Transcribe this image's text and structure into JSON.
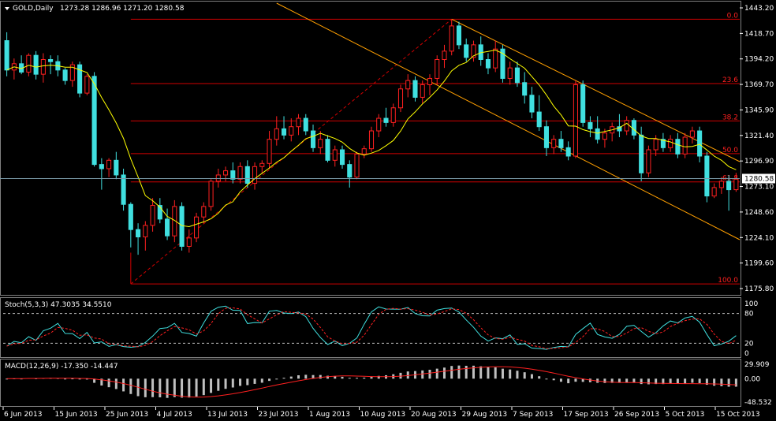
{
  "main_panel": {
    "title": "GOLD,Daily",
    "ohlc": "1273.28 1286.96 1271.20 1280.58",
    "price_ticks": [
      "1443.20",
      "1418.70",
      "1394.20",
      "1369.70",
      "1345.90",
      "1321.40",
      "1296.90",
      "1273.10",
      "1248.60",
      "1224.10",
      "1199.60",
      "1175.80"
    ],
    "current_price": "1280.58",
    "fib_levels": [
      {
        "label": "0.0",
        "price": 1432.4
      },
      {
        "label": "23.6",
        "price": 1371.1
      },
      {
        "label": "38.2",
        "price": 1335.5
      },
      {
        "label": "50.0",
        "price": 1304.3
      },
      {
        "label": "61.8",
        "price": 1277.4
      },
      {
        "label": "100.0",
        "price": 1180.2
      }
    ]
  },
  "stoch_panel": {
    "title": "Stoch(5,3,3) 47.3035 34.5510",
    "ticks": [
      "100",
      "80",
      "20",
      "0"
    ]
  },
  "macd_panel": {
    "title": "MACD(12,26,9) -17.350 -14.447",
    "ticks": [
      "29.909",
      "0.00",
      "-48.532"
    ]
  },
  "x_axis": {
    "dates": [
      "6 Jun 2013",
      "15 Jun 2013",
      "25 Jun 2013",
      "4 Jul 2013",
      "13 Jul 2013",
      "23 Jul 2013",
      "1 Aug 2013",
      "10 Aug 2013",
      "20 Aug 2013",
      "29 Aug 2013",
      "7 Sep 2013",
      "17 Sep 2013",
      "26 Sep 2013",
      "5 Oct 2013",
      "15 Oct 2013"
    ]
  },
  "chart_data": {
    "type": "candlestick",
    "symbol": "GOLD",
    "timeframe": "Daily",
    "ylim": [
      1175.8,
      1443.2
    ],
    "candles": [
      [
        1412,
        1420,
        1378,
        1384
      ],
      [
        1384,
        1395,
        1375,
        1390
      ],
      [
        1390,
        1398,
        1380,
        1382
      ],
      [
        1382,
        1400,
        1378,
        1398
      ],
      [
        1398,
        1402,
        1375,
        1380
      ],
      [
        1380,
        1400,
        1372,
        1394
      ],
      [
        1394,
        1398,
        1380,
        1392
      ],
      [
        1392,
        1398,
        1378,
        1384
      ],
      [
        1384,
        1386,
        1370,
        1374
      ],
      [
        1374,
        1392,
        1368,
        1389
      ],
      [
        1389,
        1392,
        1358,
        1362
      ],
      [
        1362,
        1380,
        1360,
        1378
      ],
      [
        1378,
        1382,
        1292,
        1294
      ],
      [
        1294,
        1300,
        1270,
        1290
      ],
      [
        1290,
        1300,
        1282,
        1298
      ],
      [
        1298,
        1306,
        1280,
        1284
      ],
      [
        1284,
        1290,
        1250,
        1256
      ],
      [
        1256,
        1258,
        1215,
        1232
      ],
      [
        1232,
        1238,
        1208,
        1225
      ],
      [
        1225,
        1240,
        1212,
        1236
      ],
      [
        1236,
        1262,
        1230,
        1255
      ],
      [
        1255,
        1262,
        1238,
        1242
      ],
      [
        1242,
        1252,
        1222,
        1226
      ],
      [
        1226,
        1260,
        1220,
        1254
      ],
      [
        1254,
        1258,
        1212,
        1216
      ],
      [
        1216,
        1232,
        1210,
        1224
      ],
      [
        1224,
        1248,
        1220,
        1244
      ],
      [
        1244,
        1258,
        1238,
        1254
      ],
      [
        1254,
        1280,
        1250,
        1278
      ],
      [
        1278,
        1290,
        1272,
        1284
      ],
      [
        1284,
        1292,
        1278,
        1288
      ],
      [
        1288,
        1296,
        1276,
        1280
      ],
      [
        1280,
        1296,
        1276,
        1292
      ],
      [
        1292,
        1298,
        1272,
        1276
      ],
      [
        1276,
        1296,
        1270,
        1292
      ],
      [
        1292,
        1298,
        1285,
        1295
      ],
      [
        1295,
        1326,
        1290,
        1318
      ],
      [
        1318,
        1340,
        1312,
        1328
      ],
      [
        1328,
        1340,
        1318,
        1322
      ],
      [
        1322,
        1338,
        1316,
        1330
      ],
      [
        1330,
        1342,
        1322,
        1338
      ],
      [
        1338,
        1342,
        1322,
        1326
      ],
      [
        1326,
        1332,
        1306,
        1310
      ],
      [
        1310,
        1326,
        1304,
        1318
      ],
      [
        1318,
        1322,
        1296,
        1298
      ],
      [
        1298,
        1312,
        1292,
        1308
      ],
      [
        1308,
        1312,
        1290,
        1294
      ],
      [
        1294,
        1298,
        1272,
        1282
      ],
      [
        1282,
        1306,
        1280,
        1304
      ],
      [
        1304,
        1312,
        1300,
        1309
      ],
      [
        1309,
        1330,
        1306,
        1326
      ],
      [
        1326,
        1342,
        1320,
        1338
      ],
      [
        1338,
        1348,
        1330,
        1334
      ],
      [
        1334,
        1352,
        1330,
        1348
      ],
      [
        1348,
        1370,
        1344,
        1366
      ],
      [
        1366,
        1380,
        1358,
        1374
      ],
      [
        1374,
        1378,
        1354,
        1358
      ],
      [
        1358,
        1374,
        1352,
        1370
      ],
      [
        1370,
        1380,
        1360,
        1376
      ],
      [
        1376,
        1398,
        1370,
        1394
      ],
      [
        1394,
        1408,
        1386,
        1402
      ],
      [
        1402,
        1432,
        1398,
        1426
      ],
      [
        1426,
        1430,
        1404,
        1408
      ],
      [
        1408,
        1414,
        1392,
        1396
      ],
      [
        1396,
        1412,
        1392,
        1408
      ],
      [
        1408,
        1416,
        1388,
        1394
      ],
      [
        1394,
        1400,
        1380,
        1386
      ],
      [
        1386,
        1412,
        1382,
        1404
      ],
      [
        1404,
        1408,
        1372,
        1376
      ],
      [
        1376,
        1392,
        1370,
        1386
      ],
      [
        1386,
        1392,
        1368,
        1372
      ],
      [
        1372,
        1382,
        1352,
        1360
      ],
      [
        1360,
        1368,
        1338,
        1344
      ],
      [
        1344,
        1360,
        1326,
        1330
      ],
      [
        1330,
        1336,
        1302,
        1310
      ],
      [
        1310,
        1322,
        1304,
        1318
      ],
      [
        1318,
        1326,
        1306,
        1310
      ],
      [
        1310,
        1316,
        1298,
        1302
      ],
      [
        1302,
        1374,
        1300,
        1370
      ],
      [
        1370,
        1374,
        1330,
        1334
      ],
      [
        1334,
        1340,
        1320,
        1328
      ],
      [
        1328,
        1340,
        1314,
        1318
      ],
      [
        1318,
        1328,
        1310,
        1324
      ],
      [
        1324,
        1334,
        1316,
        1330
      ],
      [
        1330,
        1342,
        1320,
        1326
      ],
      [
        1326,
        1340,
        1322,
        1336
      ],
      [
        1336,
        1338,
        1318,
        1322
      ],
      [
        1322,
        1330,
        1278,
        1286
      ],
      [
        1286,
        1312,
        1282,
        1308
      ],
      [
        1308,
        1322,
        1302,
        1318
      ],
      [
        1318,
        1324,
        1306,
        1310
      ],
      [
        1310,
        1322,
        1306,
        1318
      ],
      [
        1318,
        1324,
        1300,
        1304
      ],
      [
        1304,
        1324,
        1300,
        1320
      ],
      [
        1320,
        1330,
        1314,
        1326
      ],
      [
        1326,
        1330,
        1296,
        1302
      ],
      [
        1302,
        1306,
        1258,
        1264
      ],
      [
        1264,
        1276,
        1262,
        1272
      ],
      [
        1272,
        1282,
        1266,
        1278
      ],
      [
        1278,
        1284,
        1250,
        1270
      ],
      [
        1270,
        1286,
        1268,
        1280
      ]
    ],
    "moving_average": {
      "color": "#ffff00"
    },
    "channel": {
      "color": "#ff9f00"
    },
    "fib_color": "#d00000",
    "bull_color": "#ff2020",
    "bear_color": "#40e0e0"
  }
}
